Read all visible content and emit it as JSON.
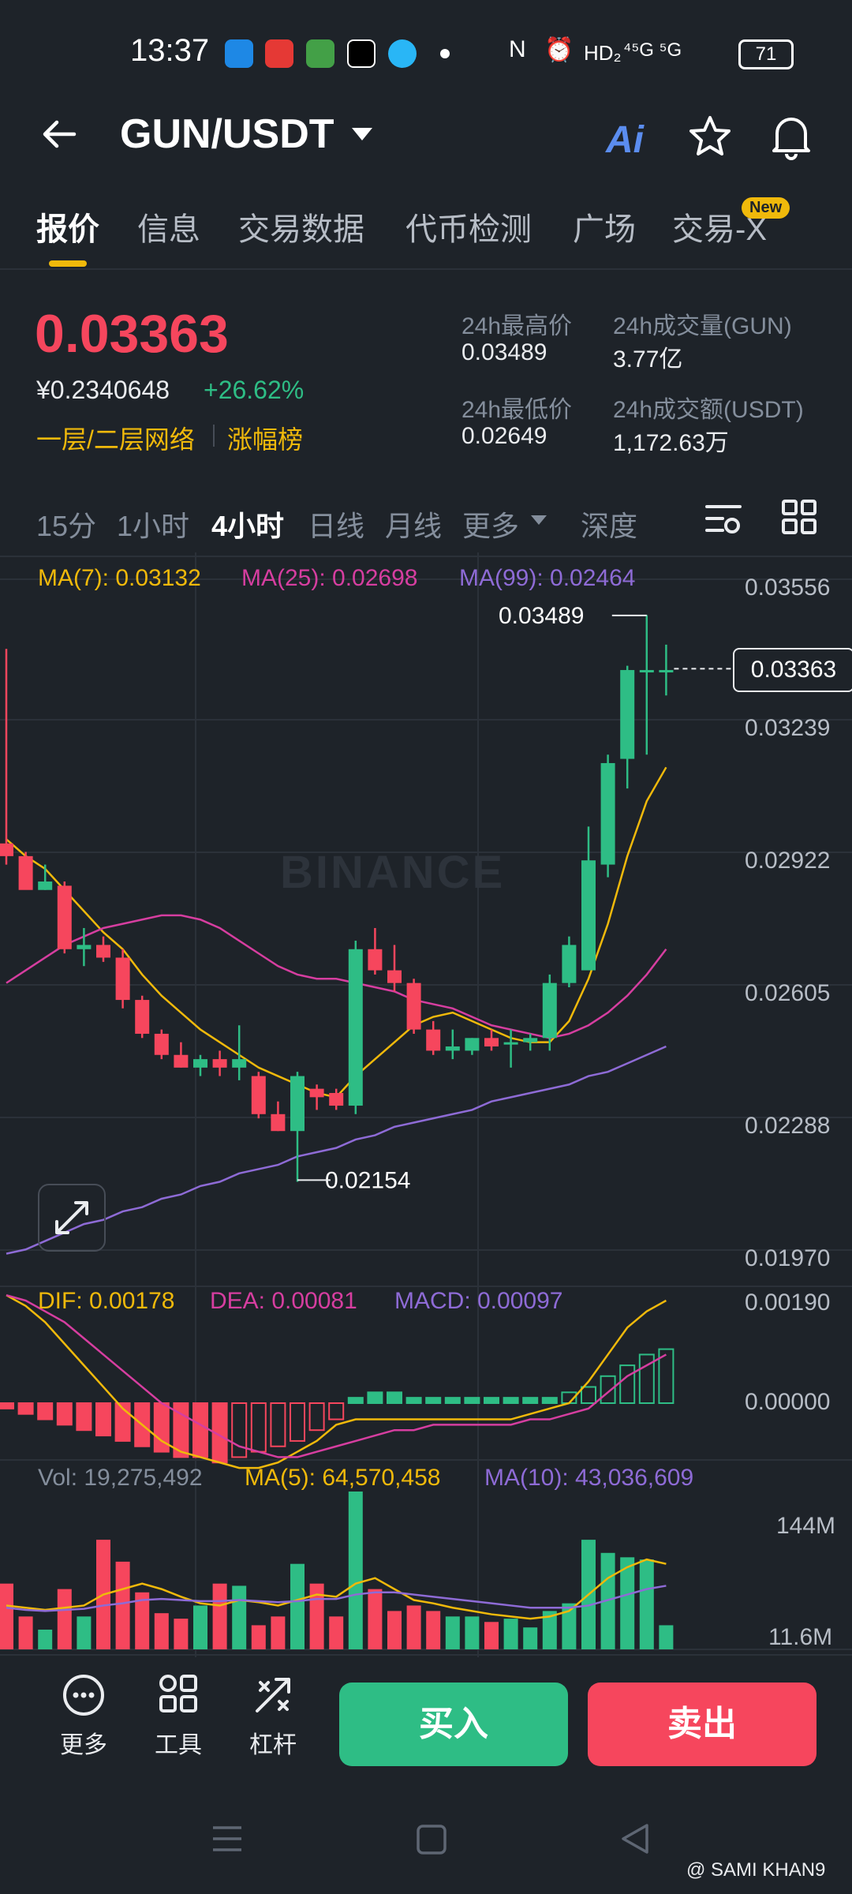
{
  "status_bar": {
    "time": "13:37",
    "network": "⁴⁵G ⁵G",
    "hd": "HD₂",
    "battery": "71"
  },
  "header": {
    "pair": "GUN/USDT",
    "ai_label": "Ai"
  },
  "tabs": [
    {
      "label": "报价"
    },
    {
      "label": "信息"
    },
    {
      "label": "交易数据"
    },
    {
      "label": "代币检测"
    },
    {
      "label": "广场"
    },
    {
      "label": "交易-X"
    }
  ],
  "new_badge": "New",
  "price": {
    "last": "0.03363",
    "cny": "¥0.2340648",
    "change": "+26.62%",
    "tag1": "一层/二层网络",
    "tag2": "涨幅榜"
  },
  "stats": {
    "high_label": "24h最高价",
    "high": "0.03489",
    "low_label": "24h最低价",
    "low": "0.02649",
    "vol_label": "24h成交量(GUN)",
    "vol": "3.77亿",
    "amt_label": "24h成交额(USDT)",
    "amt": "1,172.63万"
  },
  "intervals": [
    {
      "label": "15分"
    },
    {
      "label": "1小时"
    },
    {
      "label": "4小时"
    },
    {
      "label": "日线"
    },
    {
      "label": "月线"
    },
    {
      "label": "更多"
    },
    {
      "label": "深度"
    }
  ],
  "indicators": {
    "ma7": "MA(7): 0.03132",
    "ma25": "MA(25): 0.02698",
    "ma99": "MA(99): 0.02464",
    "dif": "DIF: 0.00178",
    "dea": "DEA: 0.00081",
    "macd": "MACD: 0.00097",
    "vol": "Vol: 19,275,492",
    "vma5": "MA(5): 64,570,458",
    "vma10": "MA(10): 43,036,609"
  },
  "chart_data": {
    "type": "candlestick",
    "price_axis_ticks": [
      "0.03556",
      "0.03239",
      "0.02922",
      "0.02605",
      "0.02288",
      "0.01970"
    ],
    "high_marker": "0.03489",
    "low_marker": "0.02154",
    "current_price": "0.03363",
    "macd_axis_ticks": [
      "0.00190",
      "0.00000"
    ],
    "volume_axis_ticks": [
      "144M",
      "11.6M"
    ],
    "watermark": "BINANCE",
    "colors": {
      "up": "#2ebd85",
      "down": "#f6465d",
      "ma7": "#f0b90b",
      "ma25": "#d63ea0",
      "ma99": "#8e6bd6"
    },
    "candles": [
      {
        "o": 0.0295,
        "h": 0.0341,
        "l": 0.029,
        "c": 0.0292
      },
      {
        "o": 0.0292,
        "h": 0.0293,
        "l": 0.0285,
        "c": 0.0284
      },
      {
        "o": 0.0284,
        "h": 0.029,
        "l": 0.0284,
        "c": 0.0286
      },
      {
        "o": 0.0285,
        "h": 0.0286,
        "l": 0.0269,
        "c": 0.027
      },
      {
        "o": 0.027,
        "h": 0.0275,
        "l": 0.0266,
        "c": 0.0271
      },
      {
        "o": 0.0271,
        "h": 0.0273,
        "l": 0.0267,
        "c": 0.0268
      },
      {
        "o": 0.0268,
        "h": 0.027,
        "l": 0.0256,
        "c": 0.0258
      },
      {
        "o": 0.0258,
        "h": 0.0259,
        "l": 0.0249,
        "c": 0.025
      },
      {
        "o": 0.025,
        "h": 0.0251,
        "l": 0.0244,
        "c": 0.0245
      },
      {
        "o": 0.0245,
        "h": 0.0248,
        "l": 0.0242,
        "c": 0.0242
      },
      {
        "o": 0.0242,
        "h": 0.0245,
        "l": 0.024,
        "c": 0.0244
      },
      {
        "o": 0.0244,
        "h": 0.0246,
        "l": 0.024,
        "c": 0.0242
      },
      {
        "o": 0.0242,
        "h": 0.0252,
        "l": 0.0239,
        "c": 0.0244
      },
      {
        "o": 0.024,
        "h": 0.0241,
        "l": 0.023,
        "c": 0.0231
      },
      {
        "o": 0.0231,
        "h": 0.0234,
        "l": 0.0227,
        "c": 0.0227
      },
      {
        "o": 0.0227,
        "h": 0.0241,
        "l": 0.0215,
        "c": 0.024
      },
      {
        "o": 0.0237,
        "h": 0.0238,
        "l": 0.0232,
        "c": 0.0235
      },
      {
        "o": 0.0236,
        "h": 0.0237,
        "l": 0.0232,
        "c": 0.0233
      },
      {
        "o": 0.0233,
        "h": 0.0272,
        "l": 0.0231,
        "c": 0.027
      },
      {
        "o": 0.027,
        "h": 0.0275,
        "l": 0.0264,
        "c": 0.0265
      },
      {
        "o": 0.0265,
        "h": 0.0271,
        "l": 0.026,
        "c": 0.0262
      },
      {
        "o": 0.0262,
        "h": 0.0263,
        "l": 0.025,
        "c": 0.0251
      },
      {
        "o": 0.0251,
        "h": 0.0253,
        "l": 0.0245,
        "c": 0.0246
      },
      {
        "o": 0.0246,
        "h": 0.0251,
        "l": 0.0244,
        "c": 0.0247
      },
      {
        "o": 0.0246,
        "h": 0.0249,
        "l": 0.0245,
        "c": 0.0249
      },
      {
        "o": 0.0249,
        "h": 0.0251,
        "l": 0.0246,
        "c": 0.0247
      },
      {
        "o": 0.0248,
        "h": 0.0251,
        "l": 0.0242,
        "c": 0.0248
      },
      {
        "o": 0.0248,
        "h": 0.025,
        "l": 0.0246,
        "c": 0.0249
      },
      {
        "o": 0.0249,
        "h": 0.0264,
        "l": 0.0246,
        "c": 0.0262
      },
      {
        "o": 0.0262,
        "h": 0.0273,
        "l": 0.0261,
        "c": 0.0271
      },
      {
        "o": 0.0265,
        "h": 0.0299,
        "l": 0.0265,
        "c": 0.0291
      },
      {
        "o": 0.029,
        "h": 0.0316,
        "l": 0.0287,
        "c": 0.0314
      },
      {
        "o": 0.0315,
        "h": 0.0337,
        "l": 0.0308,
        "c": 0.0336
      },
      {
        "o": 0.0336,
        "h": 0.0349,
        "l": 0.0316,
        "c": 0.0336
      },
      {
        "o": 0.0336,
        "h": 0.0342,
        "l": 0.033,
        "c": 0.0336
      }
    ],
    "ma7": [
      0.0296,
      0.0292,
      0.0289,
      0.0284,
      0.0279,
      0.0274,
      0.027,
      0.0264,
      0.0259,
      0.0255,
      0.0251,
      0.0248,
      0.0245,
      0.0242,
      0.024,
      0.0238,
      0.0236,
      0.0235,
      0.024,
      0.0244,
      0.0248,
      0.0252,
      0.0254,
      0.0255,
      0.0253,
      0.0251,
      0.0249,
      0.0248,
      0.0248,
      0.0253,
      0.0263,
      0.0276,
      0.0292,
      0.0305,
      0.0313
    ],
    "ma25": [
      0.0262,
      0.0265,
      0.0268,
      0.0271,
      0.0273,
      0.0275,
      0.0276,
      0.0277,
      0.0278,
      0.0278,
      0.0277,
      0.0275,
      0.0272,
      0.0269,
      0.0266,
      0.0264,
      0.0263,
      0.0263,
      0.0262,
      0.0261,
      0.026,
      0.0258,
      0.0257,
      0.0256,
      0.0254,
      0.0252,
      0.0251,
      0.025,
      0.0249,
      0.025,
      0.0252,
      0.0255,
      0.0259,
      0.0264,
      0.027
    ],
    "ma99": [
      0.0198,
      0.0199,
      0.0201,
      0.0203,
      0.0205,
      0.0206,
      0.0208,
      0.0209,
      0.0211,
      0.0212,
      0.0214,
      0.0215,
      0.0217,
      0.0218,
      0.0219,
      0.0221,
      0.0222,
      0.0223,
      0.0225,
      0.0226,
      0.0228,
      0.0229,
      0.023,
      0.0231,
      0.0232,
      0.0234,
      0.0235,
      0.0236,
      0.0237,
      0.0238,
      0.024,
      0.0241,
      0.0243,
      0.0245,
      0.0247
    ],
    "macd_hist": [
      -0.0001,
      -0.0002,
      -0.0003,
      -0.0004,
      -0.0005,
      -0.0006,
      -0.0007,
      -0.0008,
      -0.0009,
      -0.001,
      -0.001,
      -0.0011,
      -0.001,
      -0.0009,
      -0.0008,
      -0.0007,
      -0.0005,
      -0.0003,
      0.0001,
      0.0002,
      0.0002,
      0.0001,
      0.0001,
      0.0001,
      0.0001,
      0.0001,
      0.0001,
      0.0001,
      0.0001,
      0.0002,
      0.0003,
      0.0005,
      0.0007,
      0.0009,
      0.001
    ],
    "dif": [
      0.002,
      0.0018,
      0.0015,
      0.0011,
      0.0007,
      0.0003,
      -0.0001,
      -0.0004,
      -0.0007,
      -0.0009,
      -0.001,
      -0.0011,
      -0.0012,
      -0.0012,
      -0.0011,
      -0.0009,
      -0.0007,
      -0.0004,
      -0.0003,
      -0.0003,
      -0.0003,
      -0.0003,
      -0.0003,
      -0.0003,
      -0.0003,
      -0.0003,
      -0.0003,
      -0.0002,
      -0.0001,
      0.0,
      0.0004,
      0.0009,
      0.0014,
      0.0017,
      0.0019
    ],
    "dea": [
      0.002,
      0.0019,
      0.0017,
      0.0015,
      0.0012,
      0.0009,
      0.0006,
      0.0003,
      0.0,
      -0.0002,
      -0.0004,
      -0.0006,
      -0.0008,
      -0.0009,
      -0.001,
      -0.001,
      -0.0009,
      -0.0008,
      -0.0007,
      -0.0006,
      -0.0005,
      -0.0005,
      -0.0004,
      -0.0004,
      -0.0004,
      -0.0004,
      -0.0004,
      -0.0003,
      -0.0003,
      -0.0002,
      -0.0001,
      0.0002,
      0.0005,
      0.0007,
      0.0009
    ],
    "volume": [
      60,
      30,
      18,
      55,
      30,
      100,
      80,
      52,
      33,
      28,
      40,
      60,
      58,
      22,
      30,
      78,
      60,
      30,
      144,
      55,
      35,
      40,
      35,
      30,
      30,
      25,
      28,
      20,
      35,
      42,
      100,
      88,
      84,
      82,
      22
    ],
    "vol_ma5": [
      40,
      38,
      36,
      38,
      40,
      50,
      55,
      60,
      55,
      48,
      42,
      40,
      45,
      43,
      40,
      45,
      50,
      48,
      60,
      65,
      55,
      45,
      42,
      38,
      35,
      32,
      30,
      28,
      30,
      35,
      50,
      65,
      75,
      82,
      78
    ],
    "vol_ma10": [
      38,
      36,
      35,
      36,
      37,
      40,
      42,
      45,
      46,
      45,
      44,
      44,
      45,
      44,
      43,
      44,
      46,
      46,
      50,
      52,
      52,
      50,
      48,
      46,
      44,
      42,
      40,
      38,
      38,
      38,
      40,
      45,
      50,
      55,
      58
    ]
  },
  "bottom": {
    "more": "更多",
    "tools": "工具",
    "leverage": "杠杆",
    "buy": "买入",
    "sell": "卖出"
  },
  "watermark": "@ SAMI KHAN9"
}
